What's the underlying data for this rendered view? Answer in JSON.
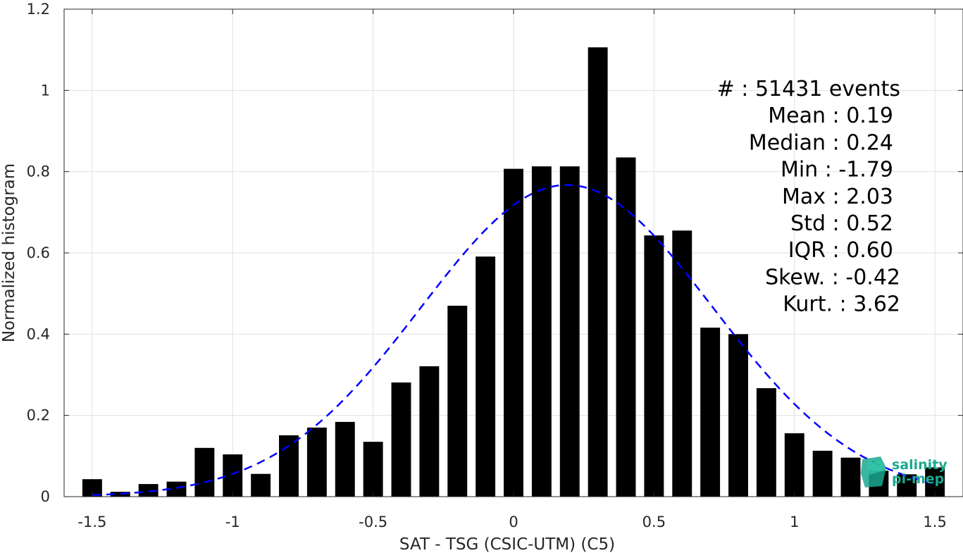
{
  "chart_data": {
    "type": "bar",
    "xlabel": "SAT - TSG (CSIC-UTM) (C5)",
    "ylabel": "Normalized histogram",
    "xlim": [
      -1.6,
      1.6
    ],
    "ylim": [
      0,
      1.2
    ],
    "x_ticks": [
      "-1.5",
      "-1",
      "-0.5",
      "0",
      "0.5",
      "1",
      "1.5"
    ],
    "x_tick_values": [
      -1.5,
      -1,
      -0.5,
      0,
      0.5,
      1,
      1.5
    ],
    "y_ticks": [
      "0",
      "0.2",
      "0.4",
      "0.6",
      "0.8",
      "1",
      "1.2"
    ],
    "y_tick_values": [
      0,
      0.2,
      0.4,
      0.6,
      0.8,
      1,
      1.2
    ],
    "grid": true,
    "bin_width": 0.1,
    "bar_color": "#000000",
    "bars": [
      {
        "x": -1.5,
        "y": 0.043
      },
      {
        "x": -1.4,
        "y": 0.012
      },
      {
        "x": -1.3,
        "y": 0.031
      },
      {
        "x": -1.2,
        "y": 0.037
      },
      {
        "x": -1.1,
        "y": 0.12
      },
      {
        "x": -1.0,
        "y": 0.104
      },
      {
        "x": -0.9,
        "y": 0.056
      },
      {
        "x": -0.8,
        "y": 0.151
      },
      {
        "x": -0.7,
        "y": 0.17
      },
      {
        "x": -0.6,
        "y": 0.184
      },
      {
        "x": -0.5,
        "y": 0.135
      },
      {
        "x": -0.4,
        "y": 0.281
      },
      {
        "x": -0.3,
        "y": 0.321
      },
      {
        "x": -0.2,
        "y": 0.47
      },
      {
        "x": -0.1,
        "y": 0.591
      },
      {
        "x": 0.0,
        "y": 0.807
      },
      {
        "x": 0.1,
        "y": 0.813
      },
      {
        "x": 0.2,
        "y": 0.813
      },
      {
        "x": 0.3,
        "y": 1.106
      },
      {
        "x": 0.4,
        "y": 0.835
      },
      {
        "x": 0.5,
        "y": 0.643
      },
      {
        "x": 0.6,
        "y": 0.655
      },
      {
        "x": 0.7,
        "y": 0.416
      },
      {
        "x": 0.8,
        "y": 0.4
      },
      {
        "x": 0.9,
        "y": 0.267
      },
      {
        "x": 1.0,
        "y": 0.156
      },
      {
        "x": 1.1,
        "y": 0.113
      },
      {
        "x": 1.2,
        "y": 0.096
      },
      {
        "x": 1.3,
        "y": 0.064
      },
      {
        "x": 1.4,
        "y": 0.055
      },
      {
        "x": 1.5,
        "y": 0.072
      }
    ],
    "fit_curve": {
      "type": "gaussian",
      "mean": 0.19,
      "std": 0.52,
      "x_range": [
        -1.5,
        1.5
      ],
      "color": "#0000ff",
      "style": "dashed"
    },
    "stats_lines": [
      "#  : 51431 events",
      "Mean : 0.19",
      "Median : 0.24",
      "Min : -1.79",
      "Max : 2.03",
      "Std : 0.52",
      "IQR : 0.60",
      "Skew. : -0.42",
      "Kurt. : 3.62"
    ]
  },
  "logo": {
    "line1": "salinity",
    "line2": "pi-mep",
    "color": "#1aa98f"
  }
}
